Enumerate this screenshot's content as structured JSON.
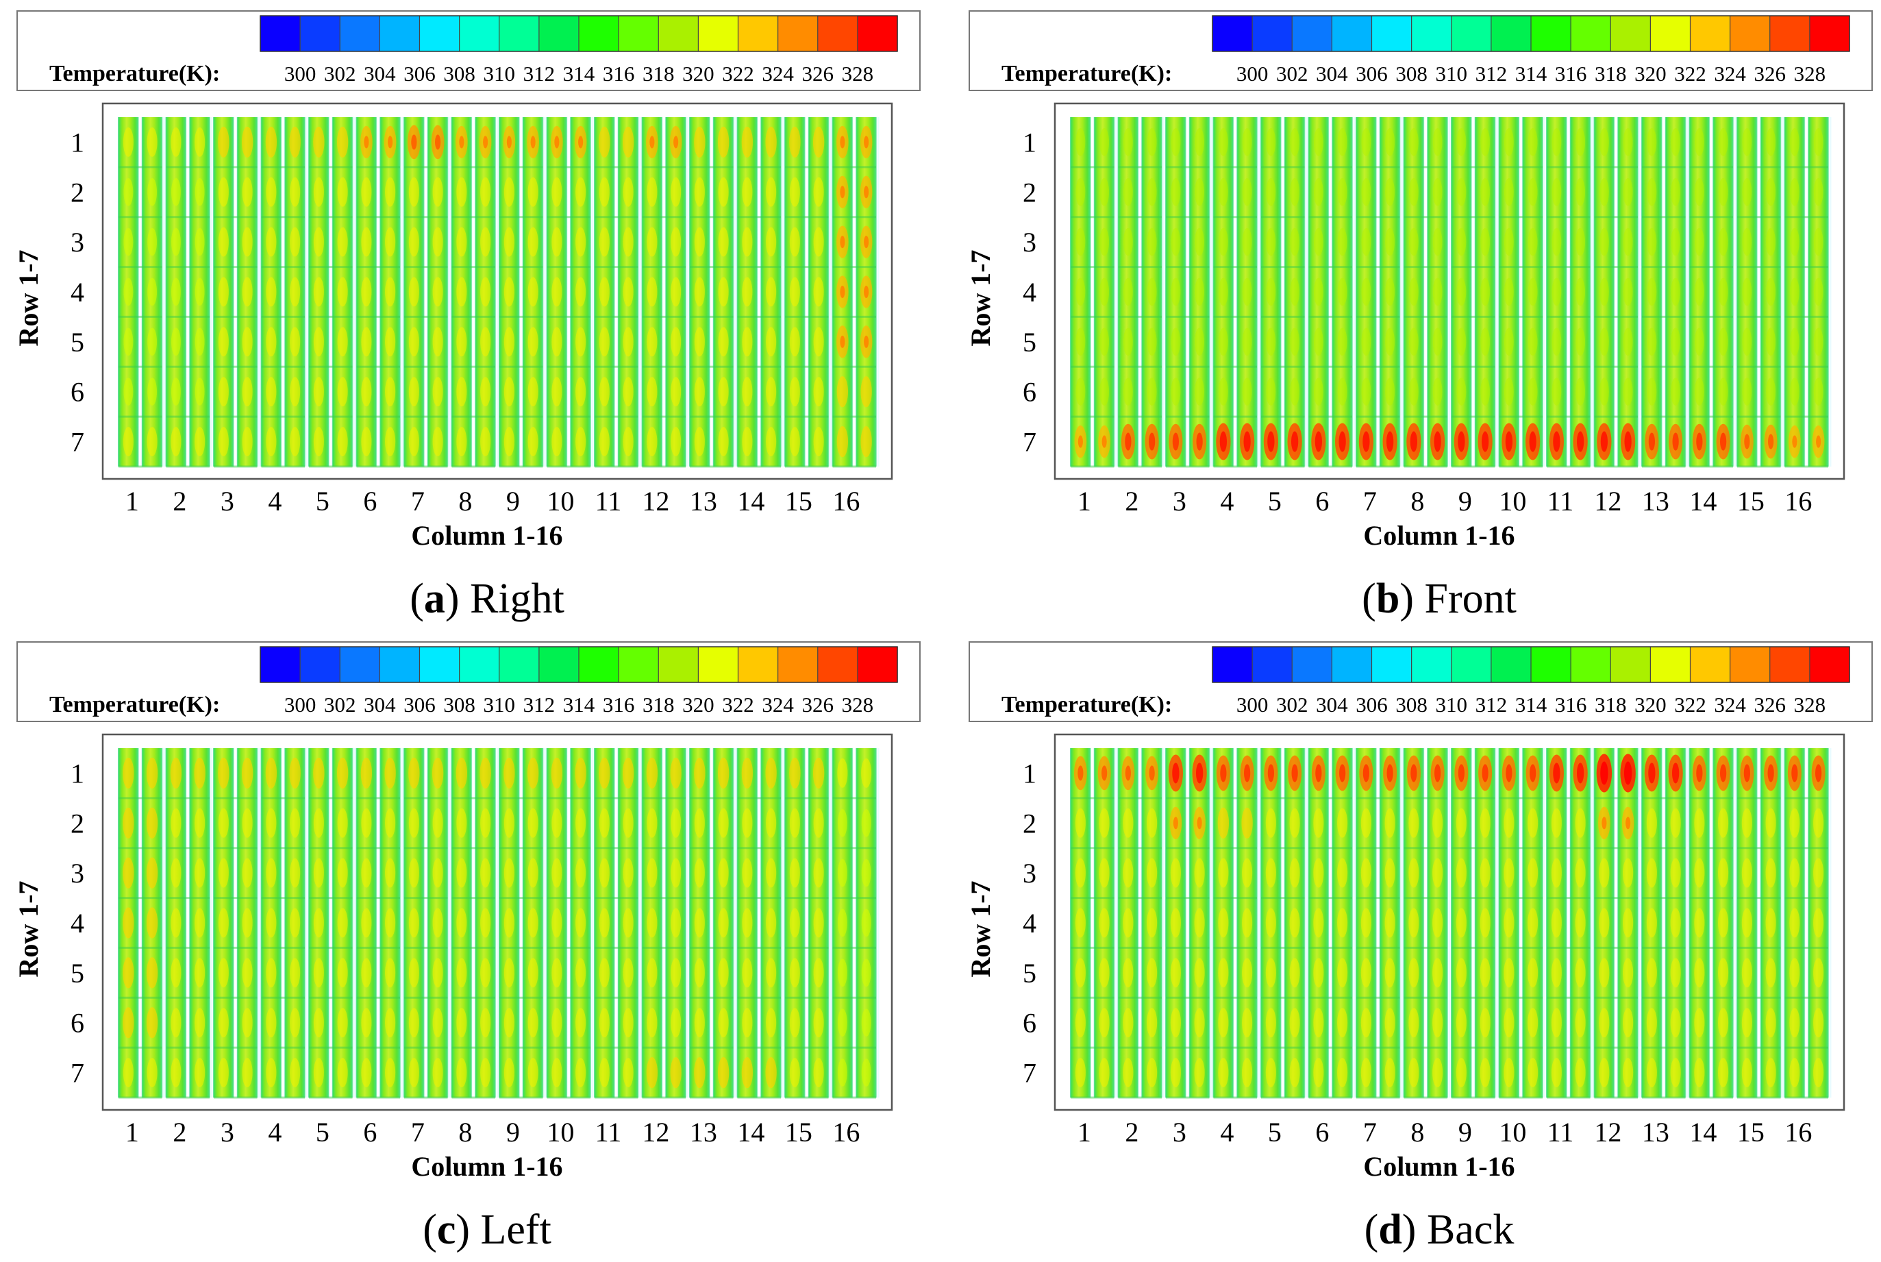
{
  "colorbar": {
    "title": "Temperature(K):",
    "ticks": [
      "300",
      "302",
      "304",
      "306",
      "308",
      "310",
      "312",
      "314",
      "316",
      "318",
      "320",
      "322",
      "324",
      "326",
      "328"
    ],
    "colors": [
      "#0a00ff",
      "#0a3cff",
      "#0a78ff",
      "#00b4ff",
      "#00eaff",
      "#00ffd2",
      "#00ff96",
      "#00f050",
      "#1eff00",
      "#64ff00",
      "#aaf000",
      "#e6ff00",
      "#ffc800",
      "#ff8c00",
      "#ff4600",
      "#ff0000"
    ]
  },
  "chart_data": [
    {
      "type": "heatmap",
      "title": "Right",
      "caption_letter": "a",
      "caption_text": "Right",
      "xlabel": "Column 1-16",
      "ylabel": "Row 1-7",
      "x_ticks": [
        "1",
        "2",
        "3",
        "4",
        "5",
        "6",
        "7",
        "8",
        "9",
        "10",
        "11",
        "12",
        "13",
        "14",
        "15",
        "16"
      ],
      "y_ticks": [
        "1",
        "2",
        "3",
        "4",
        "5",
        "6",
        "7"
      ],
      "color_range_K": [
        300,
        328
      ],
      "values_K": [
        [
          321,
          321,
          322,
          322,
          322,
          323,
          324,
          323,
          323,
          323,
          322,
          323,
          322,
          322,
          322,
          323
        ],
        [
          320,
          320,
          321,
          321,
          321,
          321,
          321,
          321,
          321,
          321,
          321,
          321,
          321,
          321,
          321,
          323
        ],
        [
          320,
          320,
          321,
          321,
          321,
          321,
          321,
          321,
          321,
          321,
          321,
          321,
          321,
          321,
          321,
          323
        ],
        [
          320,
          320,
          321,
          321,
          321,
          321,
          321,
          321,
          321,
          321,
          321,
          321,
          321,
          321,
          321,
          323
        ],
        [
          320,
          320,
          321,
          321,
          321,
          321,
          321,
          321,
          321,
          321,
          321,
          321,
          321,
          321,
          321,
          323
        ],
        [
          320,
          320,
          321,
          321,
          321,
          321,
          321,
          321,
          321,
          321,
          321,
          321,
          321,
          321,
          321,
          322
        ],
        [
          321,
          321,
          321,
          321,
          321,
          321,
          321,
          321,
          321,
          321,
          321,
          321,
          321,
          321,
          321,
          322
        ]
      ]
    },
    {
      "type": "heatmap",
      "title": "Front",
      "caption_letter": "b",
      "caption_text": "Front",
      "xlabel": "Column 1-16",
      "ylabel": "Row 1-7",
      "x_ticks": [
        "1",
        "2",
        "3",
        "4",
        "5",
        "6",
        "7",
        "8",
        "9",
        "10",
        "11",
        "12",
        "13",
        "14",
        "15",
        "16"
      ],
      "y_ticks": [
        "1",
        "2",
        "3",
        "4",
        "5",
        "6",
        "7"
      ],
      "color_range_K": [
        300,
        328
      ],
      "values_K": [
        [
          319,
          319,
          319,
          319,
          319,
          319,
          319,
          319,
          319,
          319,
          319,
          319,
          319,
          319,
          319,
          319
        ],
        [
          319,
          319,
          319,
          319,
          319,
          319,
          319,
          319,
          319,
          319,
          319,
          319,
          319,
          319,
          319,
          319
        ],
        [
          319,
          319,
          319,
          319,
          319,
          319,
          319,
          319,
          319,
          319,
          319,
          319,
          319,
          319,
          319,
          319
        ],
        [
          319,
          319,
          319,
          319,
          319,
          319,
          319,
          319,
          319,
          319,
          319,
          319,
          319,
          319,
          319,
          319
        ],
        [
          319,
          319,
          319,
          319,
          319,
          319,
          319,
          319,
          319,
          319,
          319,
          319,
          319,
          319,
          319,
          319
        ],
        [
          319,
          319,
          319,
          319,
          319,
          319,
          319,
          319,
          319,
          319,
          319,
          319,
          319,
          319,
          319,
          319
        ],
        [
          323,
          325,
          325,
          326,
          326,
          326,
          326,
          326,
          326,
          326,
          326,
          326,
          325,
          325,
          324,
          323
        ]
      ]
    },
    {
      "type": "heatmap",
      "title": "Left",
      "caption_letter": "c",
      "caption_text": "Left",
      "xlabel": "Column 1-16",
      "ylabel": "Row 1-7",
      "x_ticks": [
        "1",
        "2",
        "3",
        "4",
        "5",
        "6",
        "7",
        "8",
        "9",
        "10",
        "11",
        "12",
        "13",
        "14",
        "15",
        "16"
      ],
      "y_ticks": [
        "1",
        "2",
        "3",
        "4",
        "5",
        "6",
        "7"
      ],
      "color_range_K": [
        300,
        328
      ],
      "values_K": [
        [
          322,
          322,
          322,
          322,
          322,
          322,
          322,
          322,
          322,
          322,
          322,
          322,
          322,
          322,
          322,
          321
        ],
        [
          322,
          321,
          321,
          321,
          321,
          321,
          321,
          321,
          321,
          321,
          321,
          321,
          321,
          321,
          321,
          320
        ],
        [
          322,
          321,
          321,
          321,
          321,
          321,
          321,
          321,
          321,
          321,
          321,
          321,
          321,
          321,
          321,
          320
        ],
        [
          322,
          321,
          321,
          321,
          321,
          321,
          321,
          321,
          321,
          321,
          321,
          321,
          321,
          321,
          321,
          320
        ],
        [
          322,
          321,
          321,
          321,
          321,
          321,
          321,
          321,
          321,
          321,
          321,
          321,
          321,
          321,
          321,
          320
        ],
        [
          322,
          321,
          321,
          321,
          321,
          321,
          321,
          321,
          321,
          321,
          321,
          321,
          321,
          321,
          321,
          320
        ],
        [
          321,
          321,
          321,
          321,
          321,
          321,
          321,
          321,
          321,
          321,
          321,
          322,
          322,
          322,
          321,
          320
        ]
      ]
    },
    {
      "type": "heatmap",
      "title": "Back",
      "caption_letter": "d",
      "caption_text": "Back",
      "xlabel": "Column 1-16",
      "ylabel": "Row 1-7",
      "x_ticks": [
        "1",
        "2",
        "3",
        "4",
        "5",
        "6",
        "7",
        "8",
        "9",
        "10",
        "11",
        "12",
        "13",
        "14",
        "15",
        "16"
      ],
      "y_ticks": [
        "1",
        "2",
        "3",
        "4",
        "5",
        "6",
        "7"
      ],
      "color_range_K": [
        300,
        328
      ],
      "values_K": [
        [
          324,
          324,
          326,
          325,
          325,
          325,
          325,
          325,
          325,
          325,
          326,
          327,
          326,
          325,
          325,
          325
        ],
        [
          321,
          321,
          323,
          322,
          321,
          321,
          321,
          321,
          321,
          321,
          321,
          323,
          321,
          321,
          321,
          321
        ],
        [
          321,
          321,
          321,
          321,
          321,
          321,
          321,
          321,
          321,
          321,
          321,
          321,
          321,
          321,
          321,
          321
        ],
        [
          321,
          321,
          321,
          321,
          321,
          321,
          321,
          321,
          321,
          321,
          321,
          321,
          321,
          321,
          321,
          321
        ],
        [
          321,
          321,
          321,
          321,
          321,
          321,
          321,
          321,
          321,
          321,
          321,
          321,
          321,
          321,
          321,
          321
        ],
        [
          321,
          321,
          321,
          321,
          321,
          321,
          321,
          321,
          321,
          321,
          321,
          321,
          321,
          321,
          321,
          321
        ],
        [
          321,
          321,
          321,
          321,
          321,
          321,
          321,
          321,
          321,
          321,
          321,
          321,
          321,
          321,
          321,
          321
        ]
      ]
    }
  ]
}
